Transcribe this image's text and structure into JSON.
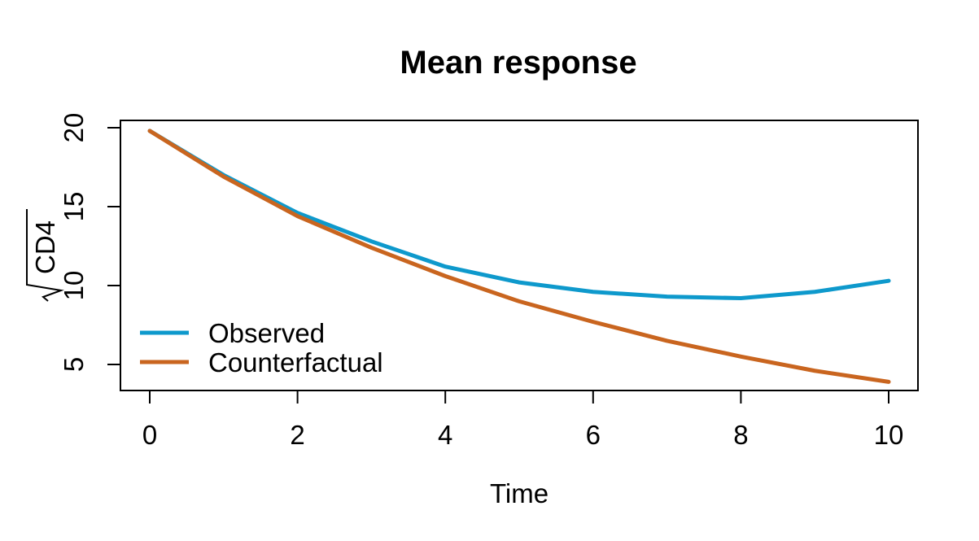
{
  "chart_data": {
    "type": "line",
    "title": "Mean response",
    "xlabel": "Time",
    "ylabel": "CD4",
    "ylabel_sqrt": true,
    "xlim": [
      0,
      10
    ],
    "ylim": [
      4,
      20.5
    ],
    "xticks": [
      0,
      2,
      4,
      6,
      8,
      10
    ],
    "yticks": [
      5,
      10,
      15,
      20
    ],
    "x": [
      0,
      1,
      2,
      3,
      4,
      5,
      6,
      7,
      8,
      9,
      10
    ],
    "series": [
      {
        "name": "Observed",
        "color": "#0e99cc",
        "values": [
          19.8,
          17.0,
          14.6,
          12.8,
          11.2,
          10.2,
          9.6,
          9.3,
          9.2,
          9.6,
          10.3
        ]
      },
      {
        "name": "Counterfactual",
        "color": "#c9651f",
        "values": [
          19.8,
          16.9,
          14.4,
          12.4,
          10.6,
          9.0,
          7.7,
          6.5,
          5.5,
          4.6,
          3.9
        ]
      }
    ],
    "legend_position": "bottom-left",
    "grid": false
  }
}
